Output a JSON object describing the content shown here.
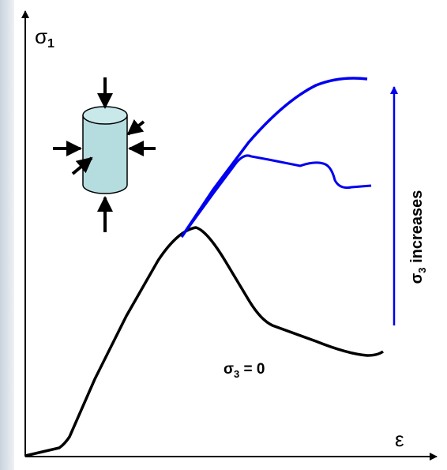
{
  "y_axis_label": {
    "symbol": "σ",
    "subscript": "1"
  },
  "x_axis_label": "ε",
  "curve_label": {
    "symbol": "σ",
    "subscript": "3",
    "rest": " = 0"
  },
  "arrow_label": {
    "symbol": "σ",
    "subscript": "3",
    "rest": " increases"
  }
}
